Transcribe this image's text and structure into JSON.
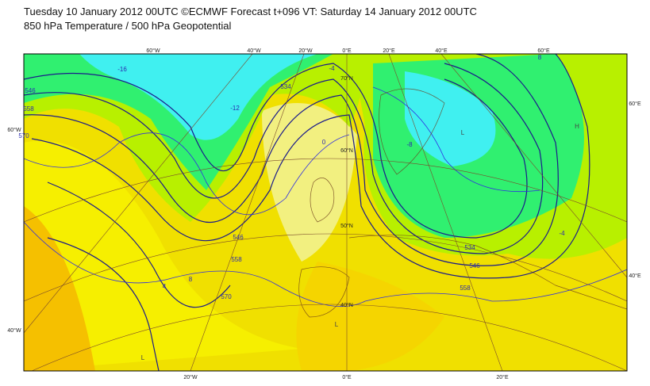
{
  "header": {
    "title": "Tuesday 10 January 2012 00UTC ©ECMWF Forecast t+096 VT: Saturday 14 January 2012 00UTC",
    "subtitle": "850 hPa Temperature / 500 hPa Geopotential"
  },
  "map": {
    "graticule_labels": [
      "60°W",
      "40°W",
      "20°W",
      "0°E",
      "20°E",
      "40°E",
      "60°E",
      "60°W",
      "40°W",
      "60°E",
      "40°E",
      "20°W",
      "0°E",
      "20°E",
      "70°N",
      "60°N",
      "50°N",
      "40°N"
    ],
    "contour_labels": [
      "534",
      "546",
      "558",
      "570",
      "534",
      "546",
      "558",
      "546",
      "558",
      "570",
      "-16",
      "-12",
      "-8",
      "-4",
      "0",
      "4",
      "8",
      "-4",
      "8"
    ],
    "pressure_labels": [
      "H",
      "L",
      "L",
      "L"
    ]
  }
}
